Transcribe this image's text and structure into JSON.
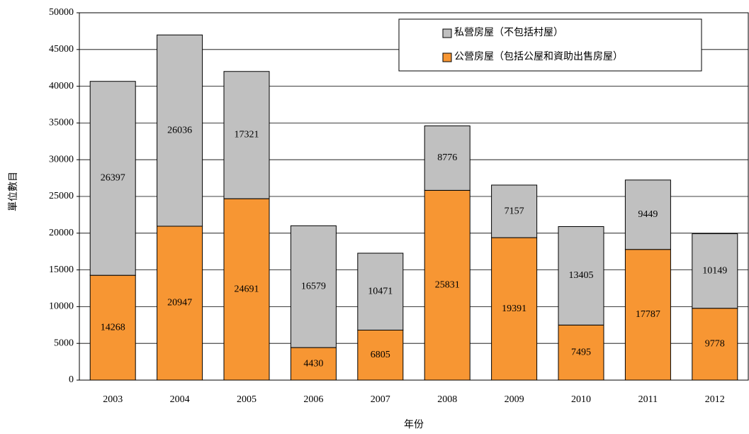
{
  "chart_data": {
    "type": "stacked_bar",
    "x_label": "年份",
    "y_label": "單位數目",
    "categories": [
      "2003",
      "2004",
      "2005",
      "2006",
      "2007",
      "2008",
      "2009",
      "2010",
      "2011",
      "2012"
    ],
    "series": [
      {
        "name": "公營房屋（包括公屋和資助出售房屋）",
        "color": "#f79633",
        "values": [
          14268,
          20947,
          24691,
          4430,
          6805,
          25831,
          19391,
          7495,
          17787,
          9778
        ]
      },
      {
        "name": "私營房屋（不包括村屋）",
        "color": "#c0c0c0",
        "values": [
          26397,
          26036,
          17321,
          16579,
          10471,
          8776,
          7157,
          13405,
          9449,
          10149
        ]
      }
    ],
    "ylim": [
      0,
      50000
    ],
    "yticks": [
      0,
      5000,
      10000,
      15000,
      20000,
      25000,
      30000,
      35000,
      40000,
      45000,
      50000
    ],
    "grid": true,
    "legend": "top-right"
  }
}
